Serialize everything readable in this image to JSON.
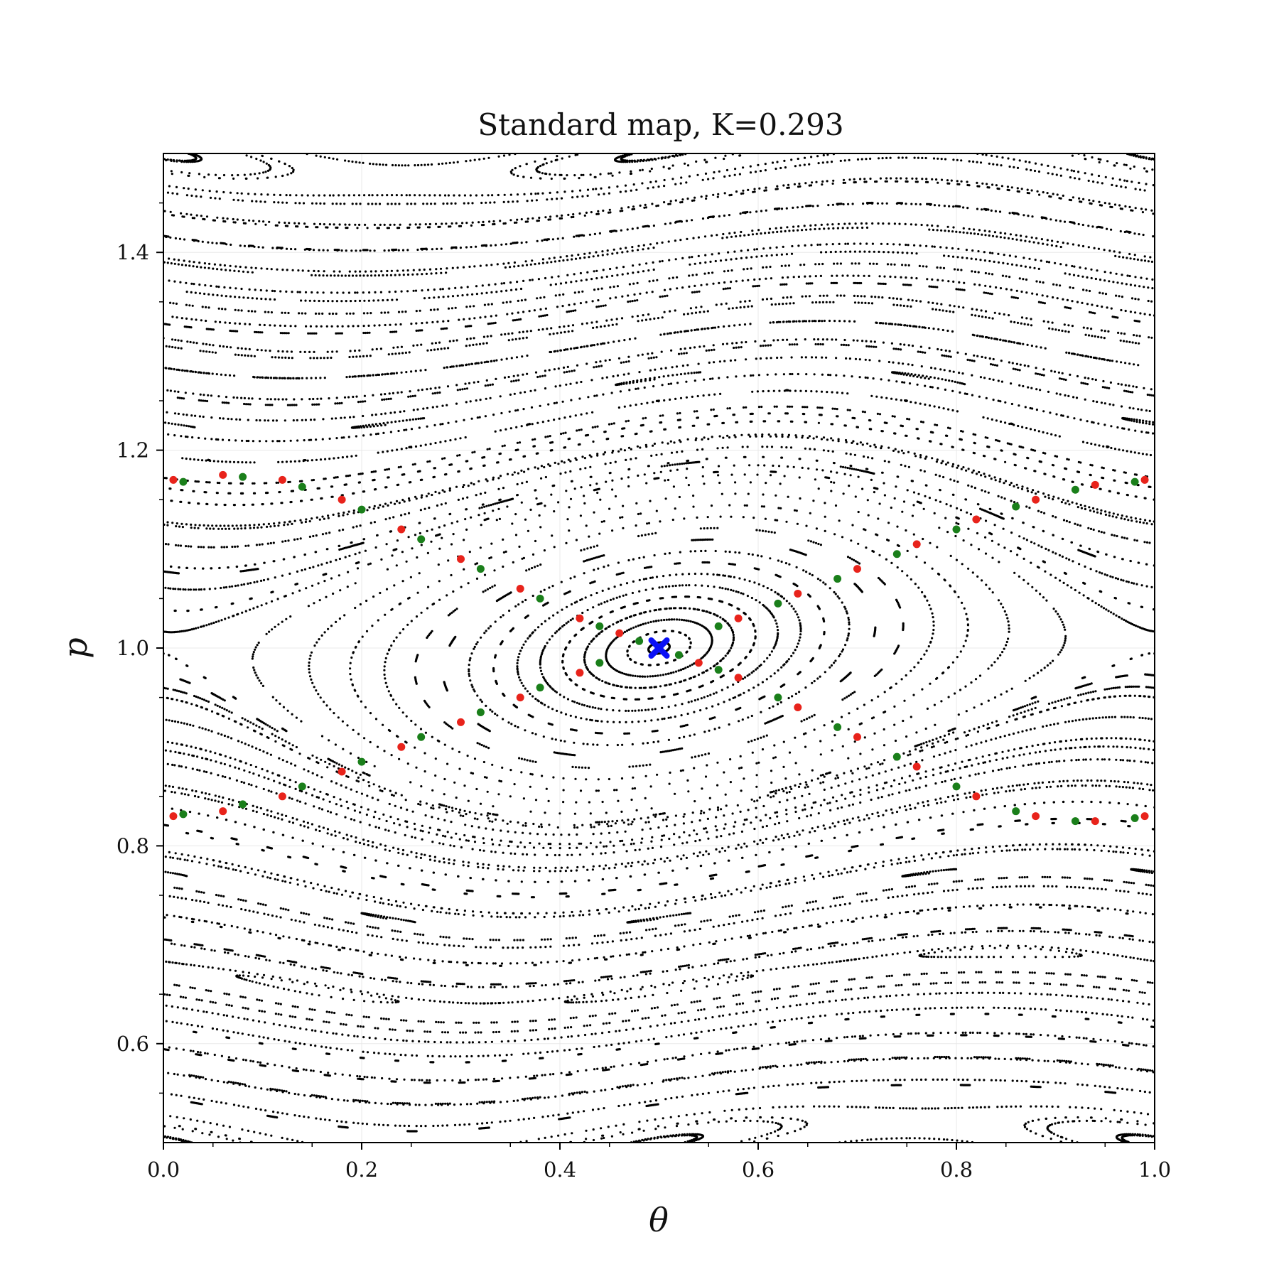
{
  "chart_data": {
    "type": "scatter",
    "title": "Standard map, K=0.293",
    "xlabel": "θ",
    "ylabel": "p",
    "xlim": [
      0.0,
      1.0
    ],
    "ylim": [
      0.5,
      1.5
    ],
    "K": 0.293,
    "grid": true,
    "x_ticks": [
      "0.0",
      "0.2",
      "0.4",
      "0.6",
      "0.8",
      "1.0"
    ],
    "y_ticks": [
      "0.6",
      "0.8",
      "1.0",
      "1.2",
      "1.4"
    ],
    "x_tick_values": [
      0.0,
      0.2,
      0.4,
      0.6,
      0.8,
      1.0
    ],
    "y_tick_values": [
      0.6,
      0.8,
      1.0,
      1.2,
      1.4
    ],
    "series": [
      {
        "role": "poincare-orbits",
        "color": "#000000",
        "marker": "dot"
      },
      {
        "role": "unstable-manifold",
        "color": "#e8231b",
        "marker": "dot",
        "points": [
          [
            0.01,
            1.17
          ],
          [
            0.06,
            1.175
          ],
          [
            0.12,
            1.17
          ],
          [
            0.18,
            1.15
          ],
          [
            0.24,
            1.12
          ],
          [
            0.3,
            1.09
          ],
          [
            0.36,
            1.06
          ],
          [
            0.42,
            1.03
          ],
          [
            0.46,
            1.015
          ],
          [
            0.5,
            1.0
          ],
          [
            0.54,
            0.985
          ],
          [
            0.58,
            0.97
          ],
          [
            0.64,
            0.94
          ],
          [
            0.7,
            0.91
          ],
          [
            0.76,
            0.88
          ],
          [
            0.82,
            0.85
          ],
          [
            0.88,
            0.83
          ],
          [
            0.94,
            0.825
          ],
          [
            0.99,
            0.83
          ],
          [
            0.01,
            0.83
          ],
          [
            0.06,
            0.835
          ],
          [
            0.12,
            0.85
          ],
          [
            0.18,
            0.875
          ],
          [
            0.24,
            0.9
          ],
          [
            0.3,
            0.925
          ],
          [
            0.36,
            0.95
          ],
          [
            0.42,
            0.975
          ],
          [
            0.58,
            1.03
          ],
          [
            0.64,
            1.055
          ],
          [
            0.7,
            1.08
          ],
          [
            0.76,
            1.105
          ],
          [
            0.82,
            1.13
          ],
          [
            0.88,
            1.15
          ],
          [
            0.94,
            1.165
          ],
          [
            0.99,
            1.17
          ]
        ]
      },
      {
        "role": "stable-manifold",
        "color": "#1a7f1a",
        "marker": "dot",
        "points": [
          [
            0.02,
            1.168
          ],
          [
            0.08,
            1.173
          ],
          [
            0.14,
            1.163
          ],
          [
            0.2,
            1.14
          ],
          [
            0.26,
            1.11
          ],
          [
            0.32,
            1.08
          ],
          [
            0.38,
            1.05
          ],
          [
            0.44,
            1.022
          ],
          [
            0.48,
            1.007
          ],
          [
            0.52,
            0.993
          ],
          [
            0.56,
            0.978
          ],
          [
            0.62,
            0.95
          ],
          [
            0.68,
            0.92
          ],
          [
            0.74,
            0.89
          ],
          [
            0.8,
            0.86
          ],
          [
            0.86,
            0.835
          ],
          [
            0.92,
            0.825
          ],
          [
            0.98,
            0.828
          ],
          [
            0.02,
            0.832
          ],
          [
            0.08,
            0.842
          ],
          [
            0.14,
            0.86
          ],
          [
            0.2,
            0.885
          ],
          [
            0.26,
            0.91
          ],
          [
            0.32,
            0.935
          ],
          [
            0.38,
            0.96
          ],
          [
            0.44,
            0.985
          ],
          [
            0.56,
            1.022
          ],
          [
            0.62,
            1.045
          ],
          [
            0.68,
            1.07
          ],
          [
            0.74,
            1.095
          ],
          [
            0.8,
            1.12
          ],
          [
            0.86,
            1.143
          ],
          [
            0.92,
            1.16
          ],
          [
            0.98,
            1.168
          ]
        ]
      },
      {
        "role": "hyperbolic-fixed-point",
        "color": "#0a10f5",
        "marker": "x",
        "points": [
          [
            0.5,
            1.0
          ]
        ]
      }
    ]
  }
}
